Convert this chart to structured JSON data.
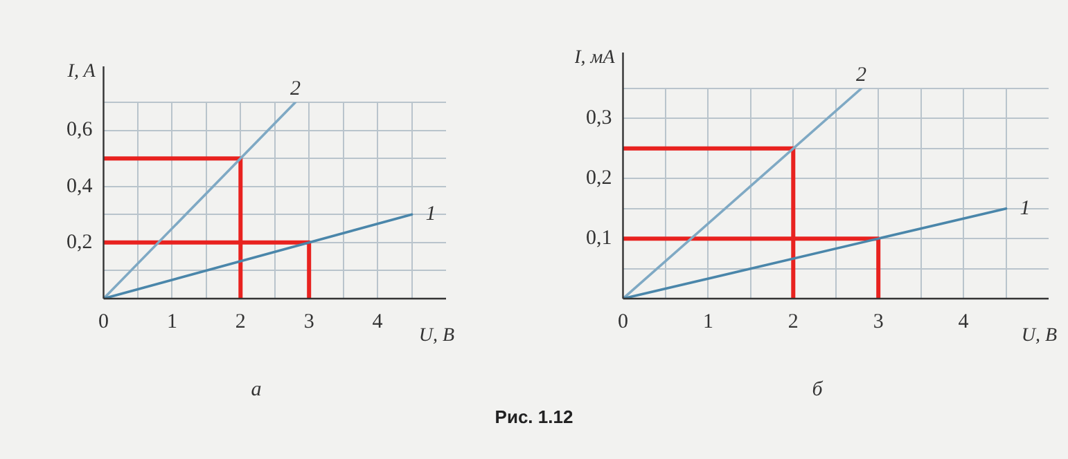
{
  "chart_data": [
    {
      "type": "line",
      "xlabel": "U, В",
      "ylabel": "I, A",
      "xlim": [
        0,
        5
      ],
      "ylim": [
        0,
        0.7
      ],
      "xticks": [
        {
          "value": 0,
          "label": "0"
        },
        {
          "value": 0.5,
          "label": null
        },
        {
          "value": 1,
          "label": "1"
        },
        {
          "value": 1.5,
          "label": null
        },
        {
          "value": 2,
          "label": "2"
        },
        {
          "value": 2.5,
          "label": null
        },
        {
          "value": 3,
          "label": "3"
        },
        {
          "value": 3.5,
          "label": null
        },
        {
          "value": 4,
          "label": "4"
        },
        {
          "value": 4.5,
          "label": null
        }
      ],
      "yticks": [
        {
          "value": 0,
          "label": null
        },
        {
          "value": 0.1,
          "label": null
        },
        {
          "value": 0.2,
          "label": "0,2"
        },
        {
          "value": 0.3,
          "label": null
        },
        {
          "value": 0.4,
          "label": "0,4"
        },
        {
          "value": 0.5,
          "label": null
        },
        {
          "value": 0.6,
          "label": "0,6"
        },
        {
          "value": 0.7,
          "label": null
        }
      ],
      "grid": true,
      "legend": false,
      "marker": "none",
      "line_style": "solid",
      "series": [
        {
          "name": "1",
          "color": "#4a86aa",
          "x": [
            0,
            4.5
          ],
          "values": [
            0,
            0.3
          ]
        },
        {
          "name": "2",
          "color": "#7fa9c4",
          "x": [
            0,
            2.8
          ],
          "values": [
            0,
            0.7
          ]
        },
        {
          "color": "#e8221f",
          "x": [
            0,
            2,
            2
          ],
          "values": [
            0.5,
            0.5,
            0
          ]
        },
        {
          "color": "#e8221f",
          "x": [
            0,
            3,
            3
          ],
          "values": [
            0.2,
            0.2,
            0
          ]
        }
      ],
      "annotations": [
        "а"
      ]
    },
    {
      "type": "line",
      "xlabel": "U, В",
      "ylabel": "I, мА",
      "xlim": [
        0,
        5
      ],
      "ylim": [
        0,
        0.35
      ],
      "xticks": [
        {
          "value": 0,
          "label": "0"
        },
        {
          "value": 0.5,
          "label": null
        },
        {
          "value": 1,
          "label": "1"
        },
        {
          "value": 1.5,
          "label": null
        },
        {
          "value": 2,
          "label": "2"
        },
        {
          "value": 2.5,
          "label": null
        },
        {
          "value": 3,
          "label": "3"
        },
        {
          "value": 3.5,
          "label": null
        },
        {
          "value": 4,
          "label": "4"
        },
        {
          "value": 4.5,
          "label": null
        }
      ],
      "yticks": [
        {
          "value": 0,
          "label": null
        },
        {
          "value": 0.05,
          "label": null
        },
        {
          "value": 0.1,
          "label": "0,1"
        },
        {
          "value": 0.15,
          "label": null
        },
        {
          "value": 0.2,
          "label": "0,2"
        },
        {
          "value": 0.25,
          "label": null
        },
        {
          "value": 0.3,
          "label": "0,3"
        },
        {
          "value": 0.35,
          "label": null
        }
      ],
      "grid": true,
      "legend": false,
      "marker": "none",
      "line_style": "solid",
      "series": [
        {
          "name": "1",
          "color": "#4a86aa",
          "x": [
            0,
            4.5
          ],
          "values": [
            0,
            0.15
          ]
        },
        {
          "name": "2",
          "color": "#7fa9c4",
          "x": [
            0,
            2.8
          ],
          "values": [
            0,
            0.35
          ]
        },
        {
          "color": "#e8221f",
          "x": [
            0,
            2,
            2
          ],
          "values": [
            0.25,
            0.25,
            0
          ]
        },
        {
          "color": "#e8221f",
          "x": [
            0,
            3,
            3
          ],
          "values": [
            0.1,
            0.1,
            0
          ]
        }
      ],
      "annotations": [
        "б",
        "Рис. 1.12"
      ]
    }
  ]
}
